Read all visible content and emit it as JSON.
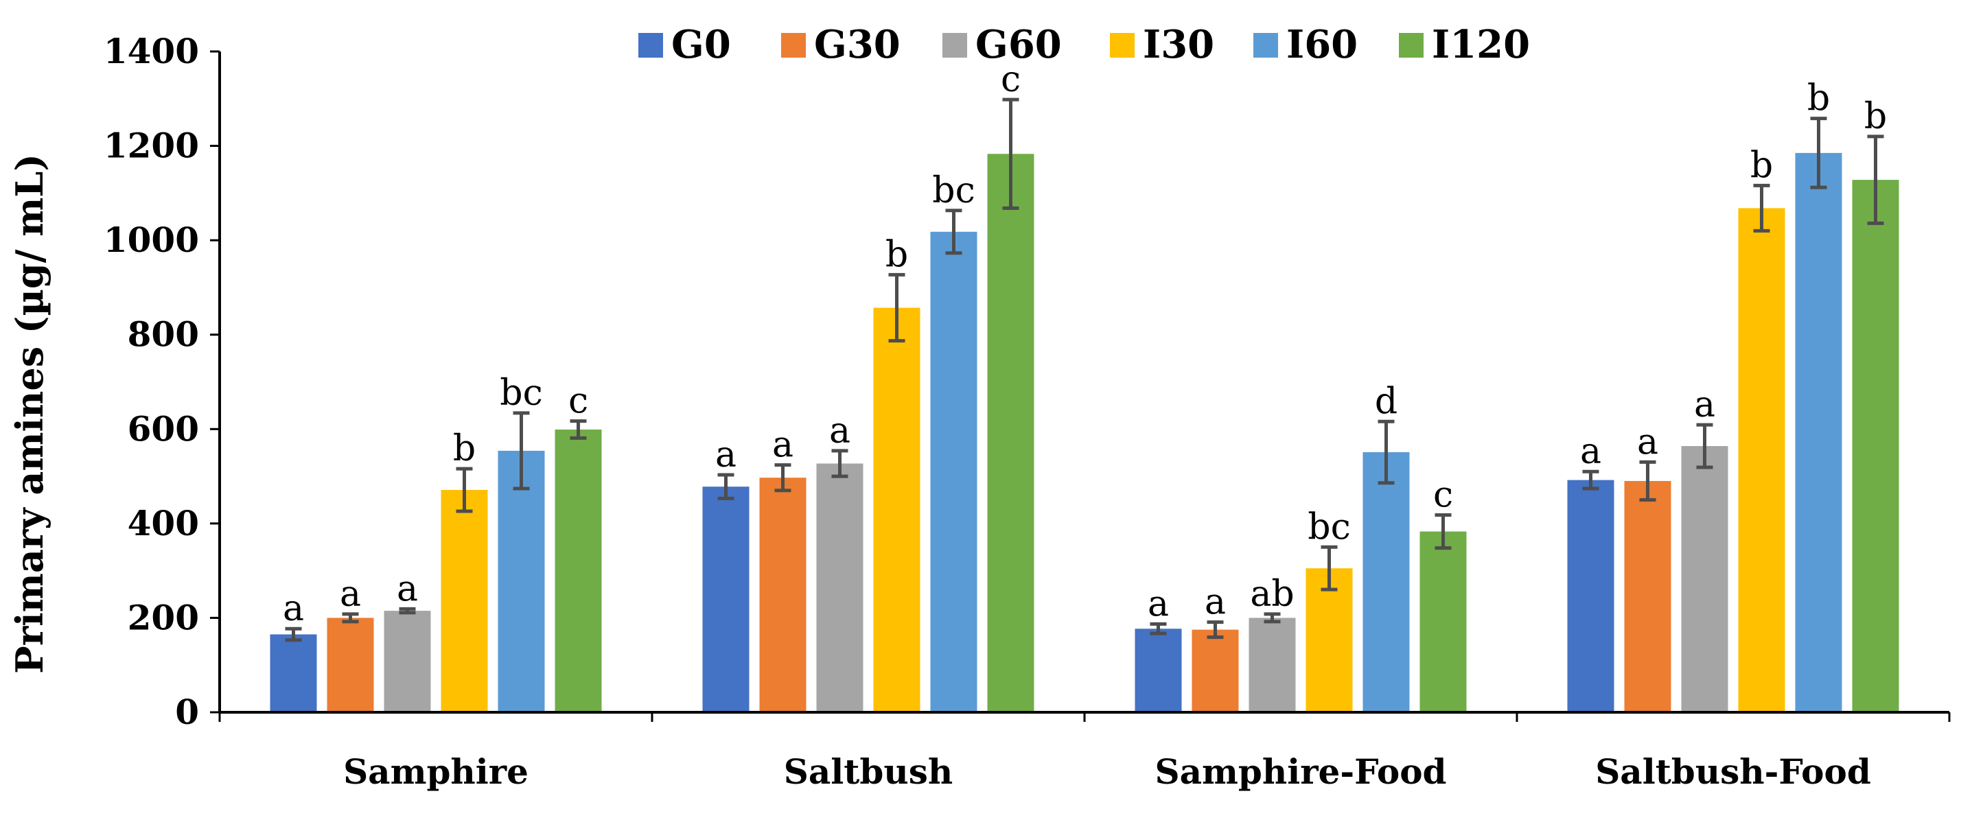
{
  "chart_data": {
    "type": "bar",
    "title": "",
    "xlabel": "",
    "ylabel": "Primary amines (µg/ mL)",
    "ylim": [
      0,
      1400
    ],
    "yticks": [
      0,
      200,
      400,
      600,
      800,
      1000,
      1200,
      1400
    ],
    "grid": false,
    "legend_position": "top-center",
    "categories": [
      "Samphire",
      "Saltbush",
      "Samphire-Food",
      "Saltbush-Food"
    ],
    "series": [
      {
        "name": "G0",
        "color": "#4472C4",
        "values": [
          165,
          478,
          177,
          492
        ],
        "errors": [
          12,
          25,
          10,
          18
        ],
        "labels": [
          "a",
          "a",
          "a",
          "a"
        ]
      },
      {
        "name": "G30",
        "color": "#ED7D31",
        "values": [
          200,
          497,
          175,
          490
        ],
        "errors": [
          8,
          27,
          16,
          40
        ],
        "labels": [
          "a",
          "a",
          "a",
          "a"
        ]
      },
      {
        "name": "G60",
        "color": "#A5A5A5",
        "values": [
          215,
          527,
          200,
          564
        ],
        "errors": [
          4,
          27,
          8,
          45
        ],
        "labels": [
          "a",
          "a",
          "ab",
          "a"
        ]
      },
      {
        "name": "I30",
        "color": "#FFC000",
        "values": [
          471,
          857,
          305,
          1068
        ],
        "errors": [
          45,
          70,
          45,
          48
        ],
        "labels": [
          "b",
          "b",
          "bc",
          "b"
        ]
      },
      {
        "name": "I60",
        "color": "#5B9BD5",
        "values": [
          554,
          1018,
          551,
          1185
        ],
        "errors": [
          80,
          45,
          65,
          73
        ],
        "labels": [
          "bc",
          "bc",
          "d",
          "b"
        ]
      },
      {
        "name": "I120",
        "color": "#70AD47",
        "values": [
          599,
          1183,
          383,
          1128
        ],
        "errors": [
          18,
          115,
          35,
          92
        ],
        "labels": [
          "c",
          "c",
          "c",
          "b"
        ]
      }
    ]
  }
}
